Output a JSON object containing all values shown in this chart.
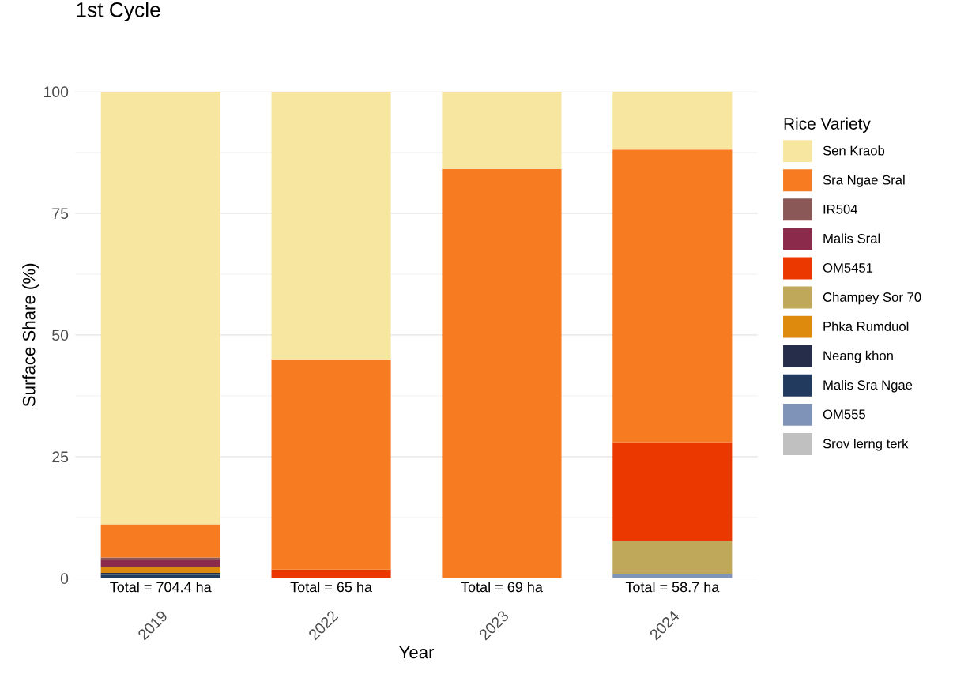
{
  "chart_data": {
    "type": "bar",
    "stacked": true,
    "title": "1st Cycle",
    "xlabel": "Year",
    "ylabel": "Surface Share (%)",
    "legend_title": "Rice Variety",
    "legend": "right",
    "grid": "y",
    "categories": [
      "2019",
      "2022",
      "2023",
      "2024"
    ],
    "ylim": [
      0,
      100
    ],
    "yticks": [
      0,
      25,
      50,
      75,
      100
    ],
    "annotations": [
      {
        "text": "Total = 704.4 ha",
        "x": "2019",
        "y": 0
      },
      {
        "text": "Total = 65 ha",
        "x": "2022",
        "y": 0
      },
      {
        "text": "Total = 69 ha",
        "x": "2023",
        "y": 0
      },
      {
        "text": "Total = 58.7 ha",
        "x": "2024",
        "y": 0
      }
    ],
    "series": [
      {
        "name": "Srov lerng terk",
        "color": "#c0c0c0",
        "values": [
          0,
          0,
          0,
          0
        ]
      },
      {
        "name": "OM555",
        "color": "#7f93b8",
        "values": [
          0,
          0,
          0,
          0.9
        ]
      },
      {
        "name": "Malis Sra Ngae",
        "color": "#223a5e",
        "values": [
          0.7,
          0,
          0,
          0
        ]
      },
      {
        "name": "Neang khon",
        "color": "#252d4a",
        "values": [
          0.4,
          0,
          0,
          0
        ]
      },
      {
        "name": "Phka Rumduol",
        "color": "#de8a0c",
        "values": [
          1.2,
          0,
          0,
          0
        ]
      },
      {
        "name": "Champey Sor 70",
        "color": "#c0a85a",
        "values": [
          0,
          0,
          0,
          6.8
        ]
      },
      {
        "name": "OM5451",
        "color": "#eb3700",
        "values": [
          0,
          1.8,
          0,
          20.3
        ]
      },
      {
        "name": "Malis Sral",
        "color": "#8b2a4b",
        "values": [
          1.4,
          0,
          0,
          0
        ]
      },
      {
        "name": "IR504",
        "color": "#8b5858",
        "values": [
          0.6,
          0,
          0,
          0
        ]
      },
      {
        "name": "Sra Ngae Sral",
        "color": "#f77b20",
        "values": [
          6.8,
          43.2,
          84.1,
          60.1
        ]
      },
      {
        "name": "Sen Kraob",
        "color": "#f7e6a0",
        "values": [
          88.9,
          55.0,
          15.9,
          12.0
        ]
      }
    ]
  }
}
